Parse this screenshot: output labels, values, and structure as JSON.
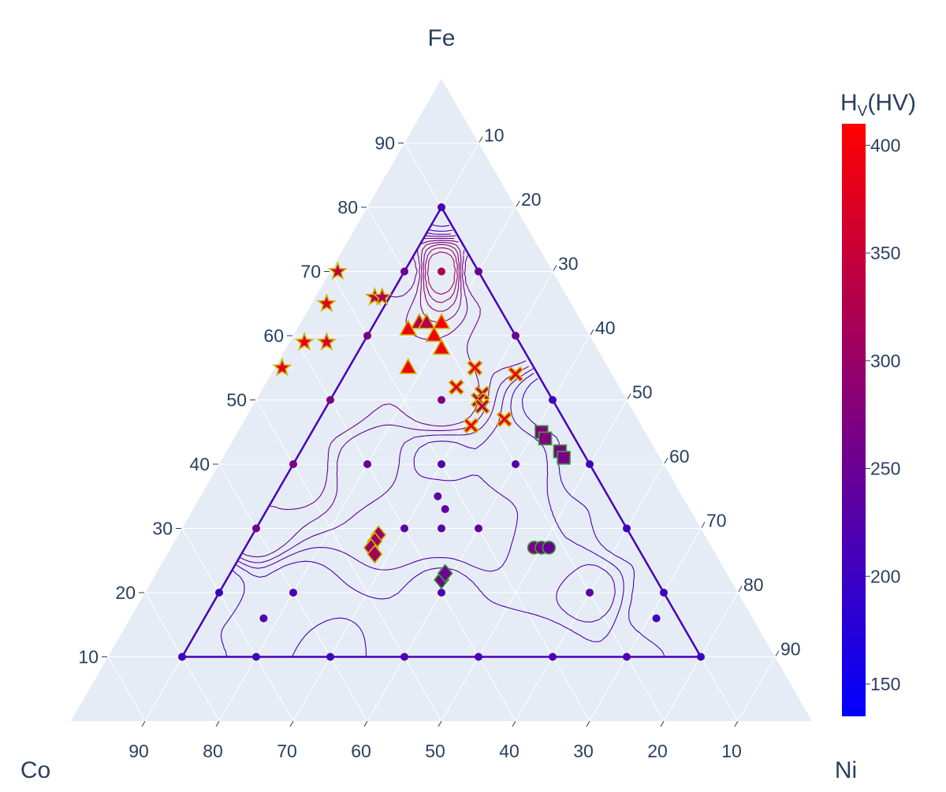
{
  "chart_data": {
    "type": "scatter",
    "subtype": "ternary-contour",
    "axes": {
      "top": {
        "title": "Fe",
        "ticks": [
          10,
          20,
          30,
          40,
          50,
          60,
          70,
          80,
          90
        ]
      },
      "left": {
        "title": "Co",
        "ticks": [
          10,
          20,
          30,
          40,
          50,
          60,
          70,
          80,
          90
        ]
      },
      "right": {
        "title": "Ni",
        "ticks": [
          10,
          20,
          30,
          40,
          50,
          60,
          70,
          80,
          90
        ]
      },
      "range_percent": [
        0,
        100
      ],
      "grid": true,
      "background": "#e5ecf6"
    },
    "colorbar": {
      "title_main": "H",
      "title_sub": "V",
      "title_suffix": "(HV)",
      "ticks": [
        150,
        200,
        250,
        300,
        350,
        400
      ],
      "range": [
        135,
        410
      ],
      "colorscale": [
        "#0000ff",
        "#ff0000"
      ],
      "placement": "right"
    },
    "grid_points": [
      {
        "fe": 80,
        "co": 10,
        "ni": 10,
        "hv": 215
      },
      {
        "fe": 70,
        "co": 20,
        "ni": 10,
        "hv": 255
      },
      {
        "fe": 70,
        "co": 10,
        "ni": 20,
        "hv": 250
      },
      {
        "fe": 70,
        "co": 15,
        "ni": 15,
        "hv": 320
      },
      {
        "fe": 60,
        "co": 30,
        "ni": 10,
        "hv": 270
      },
      {
        "fe": 60,
        "co": 10,
        "ni": 30,
        "hv": 255
      },
      {
        "fe": 50,
        "co": 40,
        "ni": 10,
        "hv": 270
      },
      {
        "fe": 50,
        "co": 25,
        "ni": 25,
        "hv": 270
      },
      {
        "fe": 50,
        "co": 10,
        "ni": 40,
        "hv": 205
      },
      {
        "fe": 40,
        "co": 50,
        "ni": 10,
        "hv": 270
      },
      {
        "fe": 40,
        "co": 40,
        "ni": 20,
        "hv": 245
      },
      {
        "fe": 40,
        "co": 30,
        "ni": 30,
        "hv": 225
      },
      {
        "fe": 40,
        "co": 20,
        "ni": 40,
        "hv": 225
      },
      {
        "fe": 40,
        "co": 10,
        "ni": 50,
        "hv": 205
      },
      {
        "fe": 35,
        "co": 33,
        "ni": 32,
        "hv": 235
      },
      {
        "fe": 33,
        "co": 33,
        "ni": 34,
        "hv": 235
      },
      {
        "fe": 30,
        "co": 60,
        "ni": 10,
        "hv": 260
      },
      {
        "fe": 30,
        "co": 40,
        "ni": 30,
        "hv": 235
      },
      {
        "fe": 30,
        "co": 35,
        "ni": 35,
        "hv": 235
      },
      {
        "fe": 30,
        "co": 30,
        "ni": 40,
        "hv": 240
      },
      {
        "fe": 30,
        "co": 10,
        "ni": 60,
        "hv": 205
      },
      {
        "fe": 27,
        "co": 22,
        "ni": 51,
        "hv": 220
      },
      {
        "fe": 20,
        "co": 70,
        "ni": 10,
        "hv": 205
      },
      {
        "fe": 20,
        "co": 60,
        "ni": 20,
        "hv": 215
      },
      {
        "fe": 20,
        "co": 40,
        "ni": 40,
        "hv": 215
      },
      {
        "fe": 20,
        "co": 20,
        "ni": 60,
        "hv": 235
      },
      {
        "fe": 20,
        "co": 10,
        "ni": 70,
        "hv": 205
      },
      {
        "fe": 16,
        "co": 66,
        "ni": 18,
        "hv": 220
      },
      {
        "fe": 16,
        "co": 13,
        "ni": 71,
        "hv": 205
      },
      {
        "fe": 10,
        "co": 80,
        "ni": 10,
        "hv": 205
      },
      {
        "fe": 10,
        "co": 70,
        "ni": 20,
        "hv": 210
      },
      {
        "fe": 10,
        "co": 60,
        "ni": 30,
        "hv": 205
      },
      {
        "fe": 10,
        "co": 50,
        "ni": 40,
        "hv": 215
      },
      {
        "fe": 10,
        "co": 40,
        "ni": 50,
        "hv": 215
      },
      {
        "fe": 10,
        "co": 30,
        "ni": 60,
        "hv": 215
      },
      {
        "fe": 10,
        "co": 20,
        "ni": 70,
        "hv": 220
      },
      {
        "fe": 10,
        "co": 10,
        "ni": 80,
        "hv": 205
      }
    ],
    "marker_groups": [
      {
        "symbol": "star",
        "outline": "#d4b300",
        "points": [
          {
            "fe": 70,
            "co": 29,
            "ni": 1,
            "hv": 340
          },
          {
            "fe": 65,
            "co": 33,
            "ni": 2,
            "hv": 370
          },
          {
            "fe": 59,
            "co": 39,
            "ni": 2,
            "hv": 385
          },
          {
            "fe": 59,
            "co": 36,
            "ni": 5,
            "hv": 370
          },
          {
            "fe": 55,
            "co": 44,
            "ni": 1,
            "hv": 375
          },
          {
            "fe": 66,
            "co": 26,
            "ni": 8,
            "hv": 330
          },
          {
            "fe": 66,
            "co": 25,
            "ni": 9,
            "hv": 320
          }
        ]
      },
      {
        "symbol": "triangle-up",
        "outline": "#d4b300",
        "points": [
          {
            "fe": 62,
            "co": 22,
            "ni": 16,
            "hv": 330
          },
          {
            "fe": 62,
            "co": 21,
            "ni": 17,
            "hv": 330
          },
          {
            "fe": 62,
            "co": 19,
            "ni": 19,
            "hv": 400
          },
          {
            "fe": 61,
            "co": 24,
            "ni": 15,
            "hv": 395
          },
          {
            "fe": 60,
            "co": 21,
            "ni": 19,
            "hv": 395
          },
          {
            "fe": 58,
            "co": 21,
            "ni": 21,
            "hv": 395
          },
          {
            "fe": 55,
            "co": 27,
            "ni": 18,
            "hv": 395
          }
        ]
      },
      {
        "symbol": "x",
        "outline": "#d4b300",
        "points": [
          {
            "fe": 55,
            "co": 18,
            "ni": 27,
            "hv": 380
          },
          {
            "fe": 54,
            "co": 13,
            "ni": 33,
            "hv": 380
          },
          {
            "fe": 52,
            "co": 22,
            "ni": 26,
            "hv": 375
          },
          {
            "fe": 51,
            "co": 19,
            "ni": 30,
            "hv": 330
          },
          {
            "fe": 50,
            "co": 20,
            "ni": 30,
            "hv": 330
          },
          {
            "fe": 49,
            "co": 20,
            "ni": 31,
            "hv": 330
          },
          {
            "fe": 47,
            "co": 18,
            "ni": 35,
            "hv": 385
          },
          {
            "fe": 46,
            "co": 23,
            "ni": 31,
            "hv": 385
          }
        ]
      },
      {
        "symbol": "square",
        "outline": "#d4b300",
        "points": [
          {
            "fe": 45,
            "co": 14,
            "ni": 41,
            "hv": 275
          },
          {
            "fe": 44,
            "co": 14,
            "ni": 42,
            "hv": 275
          },
          {
            "fe": 42,
            "co": 13,
            "ni": 45,
            "hv": 265
          },
          {
            "fe": 41,
            "co": 13,
            "ni": 46,
            "hv": 265
          }
        ]
      },
      {
        "symbol": "diamond",
        "outline": "#d4b300",
        "points": [
          {
            "fe": 29,
            "co": 44,
            "ni": 27,
            "hv": 305
          },
          {
            "fe": 28,
            "co": 45,
            "ni": 27,
            "hv": 305
          },
          {
            "fe": 27,
            "co": 46,
            "ni": 27,
            "hv": 305
          },
          {
            "fe": 26,
            "co": 46,
            "ni": 28,
            "hv": 310
          },
          {
            "fe": 22,
            "co": 39,
            "ni": 39,
            "hv": 255
          },
          {
            "fe": 23,
            "co": 38,
            "ni": 39,
            "hv": 255
          }
        ]
      },
      {
        "symbol": "circle",
        "outline": "#d4b300",
        "points": [
          {
            "fe": 27,
            "co": 24,
            "ni": 49,
            "hv": 270
          },
          {
            "fe": 27,
            "co": 23,
            "ni": 50,
            "hv": 260
          },
          {
            "fe": 27,
            "co": 22,
            "ni": 51,
            "hv": 245
          }
        ]
      }
    ]
  }
}
